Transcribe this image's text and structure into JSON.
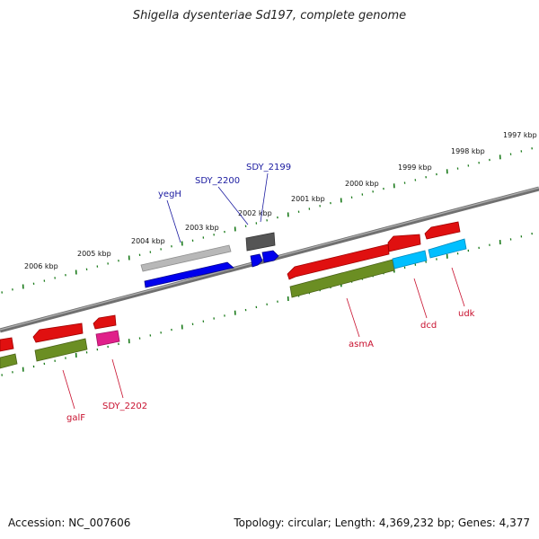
{
  "title": "Shigella dysenteriae Sd197, complete genome",
  "accession": "Accession: NC_007606",
  "summary": "Topology: circular; Length: 4,369,232 bp; Genes: 4,377",
  "scale_labels": [
    "1997 kbp",
    "1998 kbp",
    "1999 kbp",
    "2000 kbp",
    "2001 kbp",
    "2002 kbp",
    "2003 kbp",
    "2004 kbp",
    "2005 kbp",
    "2006 kbp"
  ],
  "gene_labels": {
    "yegH": "yegH",
    "SDY_2200": "SDY_2200",
    "SDY_2199": "SDY_2199",
    "asmA": "asmA",
    "dcd": "dcd",
    "udk": "udk",
    "galF": "galF",
    "SDY_2202": "SDY_2202"
  },
  "colors": {
    "backbone": "#808080",
    "scale_ticks": "#1a7a1a",
    "label_blue": "#1a1aa0",
    "label_red": "#c8102e",
    "red_gene": "#e01010",
    "olive_gene": "#6b8e23",
    "blue_gene": "#0000ee",
    "cyan_gene": "#00bfff",
    "gray_gene": "#b8b8b8",
    "dark_gray_gene": "#555555",
    "magenta_gene": "#e0208a"
  }
}
